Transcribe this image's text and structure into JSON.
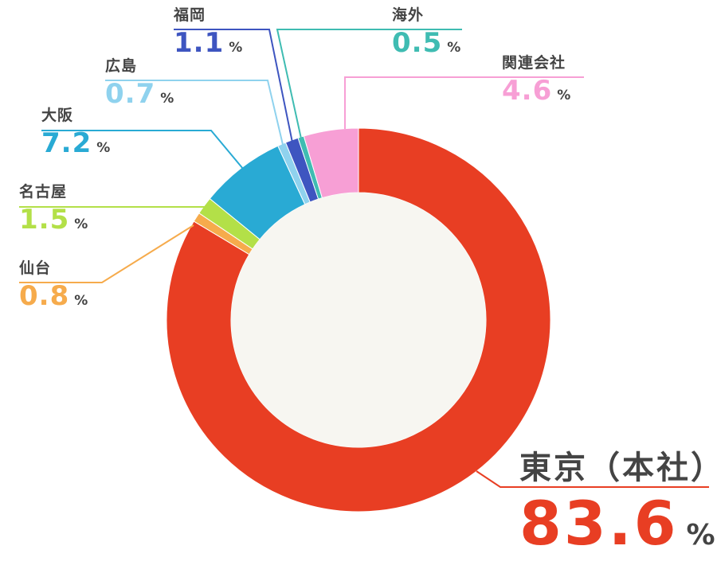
{
  "chart_data": {
    "type": "donut",
    "unit": "%",
    "slices": [
      {
        "name": "東京（本社）",
        "value": 83.6,
        "color": "#e83e23"
      },
      {
        "name": "仙台",
        "value": 0.8,
        "color": "#f6ab4c"
      },
      {
        "name": "名古屋",
        "value": 1.5,
        "color": "#b3e048"
      },
      {
        "name": "大阪",
        "value": 7.2,
        "color": "#29aad4"
      },
      {
        "name": "広島",
        "value": 0.7,
        "color": "#8fd2ee"
      },
      {
        "name": "福岡",
        "value": 1.1,
        "color": "#3e55c0"
      },
      {
        "name": "海外",
        "value": 0.5,
        "color": "#3fbcb2"
      },
      {
        "name": "関連会社",
        "value": 4.6,
        "color": "#f79fd5"
      }
    ],
    "inner_color": "#f7f6f1"
  }
}
